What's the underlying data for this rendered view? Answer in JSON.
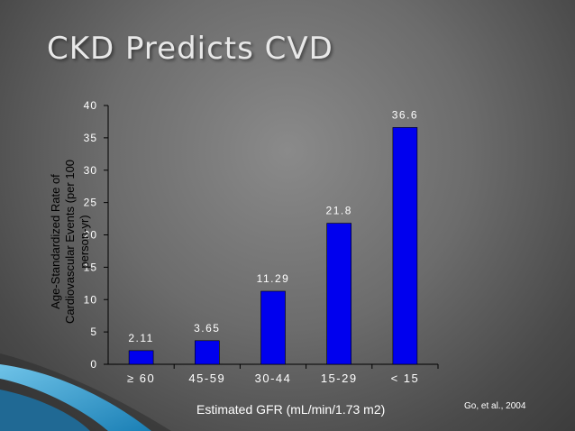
{
  "slide": {
    "title": "CKD Predicts CVD",
    "citation": "Go, et al., 2004"
  },
  "colors": {
    "bar": "#0000ee",
    "axis": "#000000",
    "label": "#ffffff",
    "y_title": "#000000"
  },
  "chart_data": {
    "type": "bar",
    "categories": [
      "≥ 60",
      "45-59",
      "30-44",
      "15-29",
      "< 15"
    ],
    "values": [
      2.11,
      3.65,
      11.29,
      21.8,
      36.6
    ],
    "value_labels": [
      "2.11",
      "3.65",
      "11.29",
      "21.8",
      "36.6"
    ],
    "xlabel": "Estimated GFR (mL/min/1.73 m2)",
    "ylabel": "Age-Standardized Rate of Cardiovascular Events (per 100 person-yr)",
    "ylim": [
      0,
      40
    ],
    "yticks": [
      0,
      5,
      10,
      15,
      20,
      25,
      30,
      35,
      40
    ],
    "grid": false,
    "legend": "none"
  }
}
